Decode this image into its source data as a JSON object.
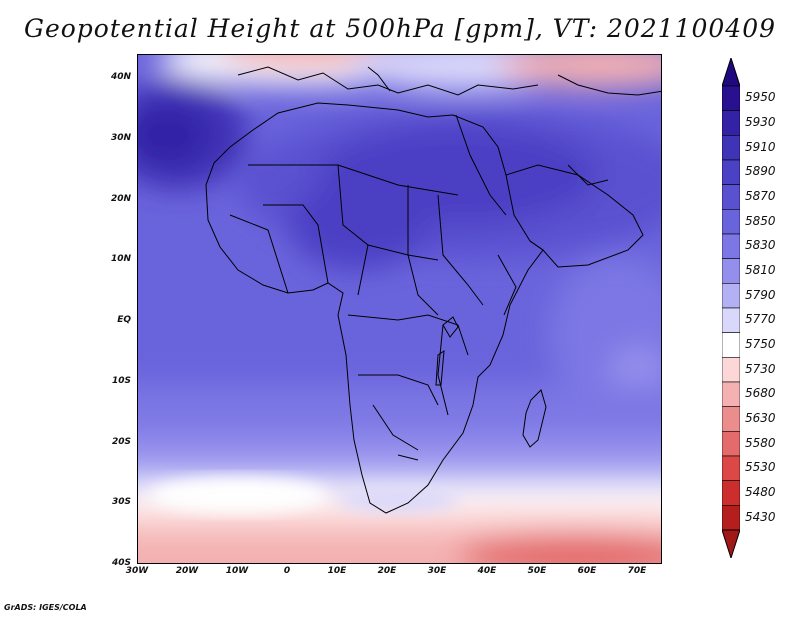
{
  "title": "Geopotential Height at 500hPa [gpm], VT: 2021100409",
  "footer": "GrADS: IGES/COLA",
  "lat_labels": [
    "40N",
    "30N",
    "20N",
    "10N",
    "EQ",
    "10S",
    "20S",
    "30S",
    "40S"
  ],
  "lon_labels": [
    "30W",
    "20W",
    "10W",
    "0",
    "10E",
    "20E",
    "30E",
    "40E",
    "50E",
    "60E",
    "70E"
  ],
  "lat_range": [
    -40,
    44
  ],
  "lon_range": [
    -30,
    75
  ],
  "colorbar": {
    "levels": [
      "5950",
      "5930",
      "5910",
      "5890",
      "5870",
      "5850",
      "5830",
      "5810",
      "5790",
      "5770",
      "5750",
      "5730",
      "5680",
      "5630",
      "5580",
      "5530",
      "5480",
      "5430"
    ],
    "colors": [
      "#28108e",
      "#3322a6",
      "#3f33b6",
      "#4b41c4",
      "#5a51d0",
      "#6a64dc",
      "#7c77e4",
      "#948fec",
      "#b4b0f4",
      "#dad8fa",
      "#ffffff",
      "#fbd7d7",
      "#f4b1b1",
      "#ec8d8d",
      "#e46b6b",
      "#dc4848",
      "#cc2e2e",
      "#b41e1e"
    ],
    "arrow_top_color": "#200880",
    "arrow_bottom_color": "#a01818"
  }
}
